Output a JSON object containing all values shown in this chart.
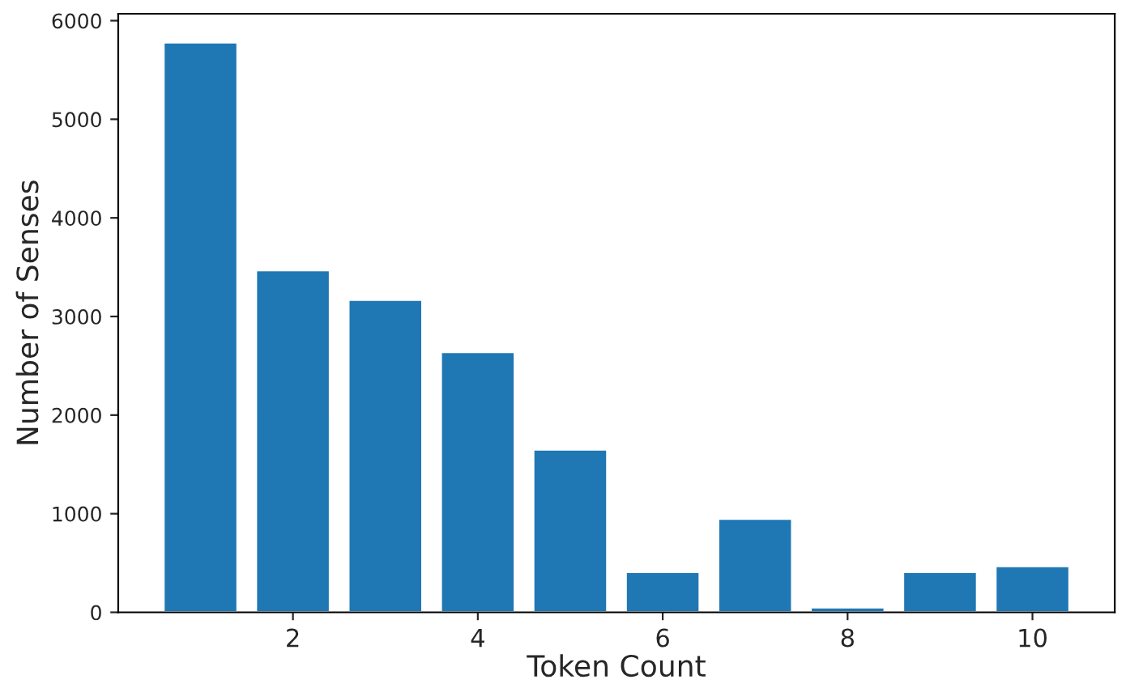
{
  "chart_data": {
    "type": "bar",
    "xlabel": "Token Count",
    "ylabel": "Number of Senses",
    "x": [
      1,
      2,
      3,
      4,
      5,
      6,
      7,
      8,
      9,
      10
    ],
    "series": [
      {
        "color": "#1f77b4",
        "values": [
          5780,
          3470,
          3170,
          2640,
          1650,
          410,
          950,
          50,
          410,
          470
        ]
      }
    ],
    "xlim": [
      0.11,
      10.89
    ],
    "xticks": [
      2,
      4,
      6,
      8,
      10
    ],
    "ylim": [
      0,
      6070
    ],
    "yticks": [
      0,
      1000,
      2000,
      3000,
      4000,
      5000,
      6000
    ],
    "grid": false,
    "legend": false
  }
}
